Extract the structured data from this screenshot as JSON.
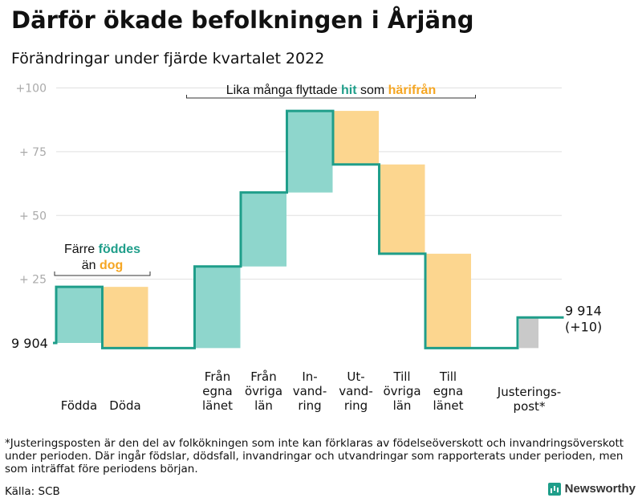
{
  "title": "Därför ökade befolkningen i Årjäng",
  "subtitle": "Förändringar under fjärde kvartalet 2022",
  "chart_data": {
    "type": "waterfall",
    "baseline": 0,
    "start_label": "9 904",
    "end_label": "9 914",
    "end_change": "(+10)",
    "y_ticks": [
      {
        "value": 100,
        "label": "+100"
      },
      {
        "value": 75,
        "label": "+ 75"
      },
      {
        "value": 50,
        "label": "+ 50"
      },
      {
        "value": 25,
        "label": "+ 25"
      }
    ],
    "ylim": [
      -2,
      100
    ],
    "steps": [
      {
        "label": [
          "Födda"
        ],
        "from": 0,
        "to": 22,
        "kind": "in"
      },
      {
        "label": [
          "Döda"
        ],
        "from": 22,
        "to": -2,
        "kind": "out"
      },
      {
        "label": [
          ""
        ],
        "from": -2,
        "to": -2,
        "kind": "gap"
      },
      {
        "label": [
          "Från",
          "egna",
          "länet"
        ],
        "from": -2,
        "to": 30,
        "kind": "in"
      },
      {
        "label": [
          "Från",
          "övriga",
          "län"
        ],
        "from": 30,
        "to": 59,
        "kind": "in"
      },
      {
        "label": [
          "In-",
          "vand-",
          "ring"
        ],
        "from": 59,
        "to": 91,
        "kind": "in"
      },
      {
        "label": [
          "Ut-",
          "vand-",
          "ring"
        ],
        "from": 91,
        "to": 70,
        "kind": "out"
      },
      {
        "label": [
          "Till",
          "övriga",
          "län"
        ],
        "from": 70,
        "to": 35,
        "kind": "out"
      },
      {
        "label": [
          "Till",
          "egna",
          "länet"
        ],
        "from": 35,
        "to": -2,
        "kind": "out"
      },
      {
        "label": [
          ""
        ],
        "from": -2,
        "to": -2,
        "kind": "gap"
      },
      {
        "label": [
          "Justerings-",
          "post*"
        ],
        "from": -2,
        "to": 10,
        "kind": "adjust"
      }
    ],
    "annotations": [
      {
        "parts": [
          {
            "text": "Lika många flyttade ",
            "color": "#111111"
          },
          {
            "text": "hit",
            "color": "#1f9e8a",
            "bold": true
          },
          {
            "text": " som ",
            "color": "#111111"
          },
          {
            "text": "härifrån",
            "color": "#f5a623",
            "bold": true
          }
        ],
        "from_step": 3,
        "to_step": 8
      },
      {
        "lines": [
          [
            {
              "text": "Färre ",
              "color": "#111111"
            },
            {
              "text": "föddes",
              "color": "#1f9e8a",
              "bold": true
            }
          ],
          [
            {
              "text": "än ",
              "color": "#111111"
            },
            {
              "text": "dog",
              "color": "#f5a623",
              "bold": true
            }
          ]
        ],
        "from_step": 0,
        "to_step": 1
      }
    ],
    "colors": {
      "in": "#8ed6cc",
      "out": "#fcd68f",
      "adjust": "#c9c9c9",
      "line": "#1f9e8a",
      "grid": "#e0e0e0",
      "tick": "#aaaaaa"
    }
  },
  "footnote": "*Justeringsposten är den del av folkökningen som inte kan förklaras av födelseöverskott och invandringsöverskott under perioden. Där ingår födslar, dödsfall, invandringar och utvandringar som rapporterats under perioden, men som inträffat före periodens början.",
  "source": "Källa: SCB",
  "brand": "Newsworthy"
}
